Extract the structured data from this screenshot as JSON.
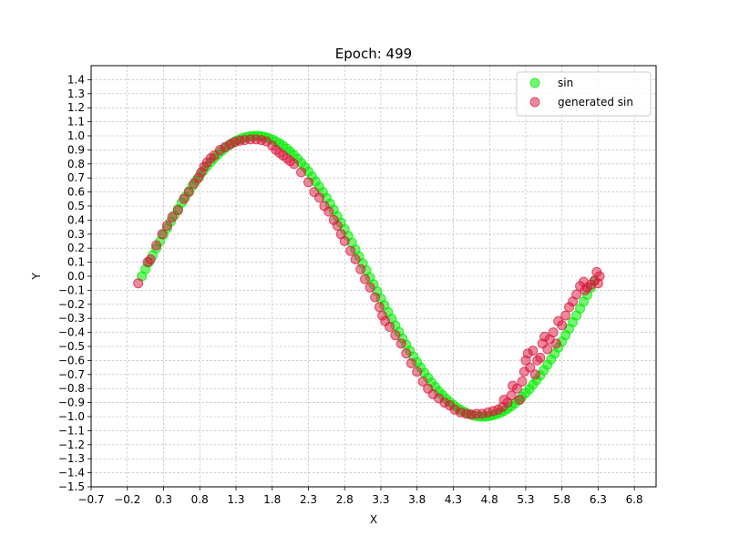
{
  "chart_data": {
    "type": "scatter",
    "title": "Epoch: 499",
    "xlabel": "X",
    "ylabel": "Y",
    "xlim": [
      -0.7,
      7.1
    ],
    "ylim": [
      -1.5,
      1.5
    ],
    "xticks": [
      -0.7,
      -0.2,
      0.3,
      0.8,
      1.3,
      1.8,
      2.3,
      2.8,
      3.3,
      3.8,
      4.3,
      4.8,
      5.3,
      5.8,
      6.3,
      6.8
    ],
    "xtick_labels": [
      "−0.7",
      "−0.2",
      "0.3",
      "0.8",
      "1.3",
      "1.8",
      "2.3",
      "2.8",
      "3.3",
      "3.8",
      "4.3",
      "4.8",
      "5.3",
      "5.8",
      "6.3",
      "6.8"
    ],
    "yticks": [
      -1.5,
      -1.4,
      -1.3,
      -1.2,
      -1.1,
      -1.0,
      -0.9,
      -0.8,
      -0.7,
      -0.6,
      -0.5,
      -0.4,
      -0.3,
      -0.2,
      -0.1,
      0.0,
      0.1,
      0.2,
      0.3,
      0.4,
      0.5,
      0.6,
      0.7,
      0.8,
      0.9,
      1.0,
      1.1,
      1.2,
      1.3,
      1.4
    ],
    "ytick_labels": [
      "−1.5",
      "−1.4",
      "−1.3",
      "−1.2",
      "−1.1",
      "−1.0",
      "−0.9",
      "−0.8",
      "−0.7",
      "−0.6",
      "−0.5",
      "−0.4",
      "−0.3",
      "−0.2",
      "−0.1",
      "0.0",
      "0.1",
      "0.2",
      "0.3",
      "0.4",
      "0.5",
      "0.6",
      "0.7",
      "0.8",
      "0.9",
      "1.0",
      "1.1",
      "1.2",
      "1.3",
      "1.4"
    ],
    "grid": true,
    "legend_position": "top-right",
    "series": [
      {
        "name": "sin",
        "color": "#00ee00",
        "opacity": 0.55,
        "points": [
          [
            0.0,
            0.0
          ],
          [
            0.05,
            0.05
          ],
          [
            0.1,
            0.1
          ],
          [
            0.15,
            0.149
          ],
          [
            0.2,
            0.199
          ],
          [
            0.25,
            0.247
          ],
          [
            0.3,
            0.296
          ],
          [
            0.35,
            0.343
          ],
          [
            0.4,
            0.389
          ],
          [
            0.45,
            0.435
          ],
          [
            0.5,
            0.479
          ],
          [
            0.55,
            0.523
          ],
          [
            0.6,
            0.565
          ],
          [
            0.65,
            0.605
          ],
          [
            0.7,
            0.644
          ],
          [
            0.75,
            0.682
          ],
          [
            0.8,
            0.717
          ],
          [
            0.85,
            0.751
          ],
          [
            0.9,
            0.783
          ],
          [
            0.95,
            0.813
          ],
          [
            1.0,
            0.841
          ],
          [
            1.05,
            0.867
          ],
          [
            1.1,
            0.891
          ],
          [
            1.15,
            0.913
          ],
          [
            1.2,
            0.932
          ],
          [
            1.25,
            0.949
          ],
          [
            1.3,
            0.964
          ],
          [
            1.35,
            0.976
          ],
          [
            1.4,
            0.985
          ],
          [
            1.45,
            0.993
          ],
          [
            1.5,
            0.997
          ],
          [
            1.55,
            1.0
          ],
          [
            1.6,
            1.0
          ],
          [
            1.65,
            0.997
          ],
          [
            1.7,
            0.992
          ],
          [
            1.75,
            0.984
          ],
          [
            1.8,
            0.974
          ],
          [
            1.85,
            0.961
          ],
          [
            1.9,
            0.946
          ],
          [
            1.95,
            0.929
          ],
          [
            2.0,
            0.909
          ],
          [
            2.05,
            0.887
          ],
          [
            2.1,
            0.863
          ],
          [
            2.15,
            0.837
          ],
          [
            2.2,
            0.808
          ],
          [
            2.25,
            0.778
          ],
          [
            2.3,
            0.746
          ],
          [
            2.35,
            0.711
          ],
          [
            2.4,
            0.675
          ],
          [
            2.45,
            0.638
          ],
          [
            2.5,
            0.598
          ],
          [
            2.55,
            0.558
          ],
          [
            2.6,
            0.516
          ],
          [
            2.65,
            0.472
          ],
          [
            2.7,
            0.427
          ],
          [
            2.75,
            0.382
          ],
          [
            2.8,
            0.335
          ],
          [
            2.85,
            0.287
          ],
          [
            2.9,
            0.239
          ],
          [
            2.95,
            0.19
          ],
          [
            3.0,
            0.141
          ],
          [
            3.05,
            0.091
          ],
          [
            3.1,
            0.042
          ],
          [
            3.15,
            -0.008
          ],
          [
            3.2,
            -0.058
          ],
          [
            3.25,
            -0.108
          ],
          [
            3.3,
            -0.158
          ],
          [
            3.35,
            -0.207
          ],
          [
            3.4,
            -0.256
          ],
          [
            3.45,
            -0.303
          ],
          [
            3.5,
            -0.351
          ],
          [
            3.55,
            -0.397
          ],
          [
            3.6,
            -0.443
          ],
          [
            3.65,
            -0.487
          ],
          [
            3.7,
            -0.53
          ],
          [
            3.75,
            -0.572
          ],
          [
            3.8,
            -0.612
          ],
          [
            3.85,
            -0.65
          ],
          [
            3.9,
            -0.688
          ],
          [
            3.95,
            -0.723
          ],
          [
            4.0,
            -0.757
          ],
          [
            4.05,
            -0.788
          ],
          [
            4.1,
            -0.818
          ],
          [
            4.15,
            -0.846
          ],
          [
            4.2,
            -0.872
          ],
          [
            4.25,
            -0.895
          ],
          [
            4.3,
            -0.916
          ],
          [
            4.35,
            -0.935
          ],
          [
            4.4,
            -0.952
          ],
          [
            4.45,
            -0.966
          ],
          [
            4.5,
            -0.978
          ],
          [
            4.55,
            -0.987
          ],
          [
            4.6,
            -0.994
          ],
          [
            4.65,
            -0.998
          ],
          [
            4.7,
            -1.0
          ],
          [
            4.75,
            -0.999
          ],
          [
            4.8,
            -0.996
          ],
          [
            4.85,
            -0.99
          ],
          [
            4.9,
            -0.982
          ],
          [
            4.95,
            -0.972
          ],
          [
            5.0,
            -0.959
          ],
          [
            5.05,
            -0.944
          ],
          [
            5.1,
            -0.926
          ],
          [
            5.15,
            -0.906
          ],
          [
            5.2,
            -0.883
          ],
          [
            5.25,
            -0.859
          ],
          [
            5.3,
            -0.832
          ],
          [
            5.35,
            -0.804
          ],
          [
            5.4,
            -0.773
          ],
          [
            5.45,
            -0.74
          ],
          [
            5.5,
            -0.706
          ],
          [
            5.55,
            -0.669
          ],
          [
            5.6,
            -0.631
          ],
          [
            5.65,
            -0.592
          ],
          [
            5.7,
            -0.551
          ],
          [
            5.75,
            -0.508
          ],
          [
            5.8,
            -0.465
          ],
          [
            5.85,
            -0.42
          ],
          [
            5.9,
            -0.374
          ],
          [
            5.95,
            -0.327
          ],
          [
            6.0,
            -0.279
          ],
          [
            6.05,
            -0.231
          ],
          [
            6.1,
            -0.182
          ],
          [
            6.15,
            -0.133
          ],
          [
            6.2,
            -0.083
          ],
          [
            6.25,
            -0.033
          ]
        ]
      },
      {
        "name": "generated sin",
        "color": "#dc143c",
        "opacity": 0.5,
        "points": [
          [
            -0.05,
            -0.05
          ],
          [
            0.08,
            0.1
          ],
          [
            0.12,
            0.12
          ],
          [
            0.2,
            0.22
          ],
          [
            0.28,
            0.3
          ],
          [
            0.35,
            0.36
          ],
          [
            0.42,
            0.42
          ],
          [
            0.5,
            0.47
          ],
          [
            0.58,
            0.55
          ],
          [
            0.65,
            0.6
          ],
          [
            0.72,
            0.66
          ],
          [
            0.78,
            0.7
          ],
          [
            0.82,
            0.74
          ],
          [
            0.86,
            0.78
          ],
          [
            0.9,
            0.81
          ],
          [
            0.95,
            0.84
          ],
          [
            1.0,
            0.86
          ],
          [
            1.08,
            0.9
          ],
          [
            1.15,
            0.92
          ],
          [
            1.22,
            0.94
          ],
          [
            1.28,
            0.955
          ],
          [
            1.35,
            0.965
          ],
          [
            1.42,
            0.97
          ],
          [
            1.5,
            0.975
          ],
          [
            1.58,
            0.975
          ],
          [
            1.65,
            0.97
          ],
          [
            1.72,
            0.96
          ],
          [
            1.8,
            0.93
          ],
          [
            1.85,
            0.9
          ],
          [
            1.9,
            0.88
          ],
          [
            1.95,
            0.86
          ],
          [
            2.0,
            0.84
          ],
          [
            2.05,
            0.82
          ],
          [
            2.1,
            0.8
          ],
          [
            2.2,
            0.74
          ],
          [
            2.3,
            0.67
          ],
          [
            2.38,
            0.6
          ],
          [
            2.45,
            0.56
          ],
          [
            2.52,
            0.5
          ],
          [
            2.58,
            0.46
          ],
          [
            2.65,
            0.4
          ],
          [
            2.7,
            0.36
          ],
          [
            2.75,
            0.3
          ],
          [
            2.8,
            0.25
          ],
          [
            2.88,
            0.18
          ],
          [
            2.95,
            0.12
          ],
          [
            3.02,
            0.05
          ],
          [
            3.08,
            -0.02
          ],
          [
            3.15,
            -0.08
          ],
          [
            3.22,
            -0.15
          ],
          [
            3.28,
            -0.22
          ],
          [
            3.32,
            -0.28
          ],
          [
            3.36,
            -0.32
          ],
          [
            3.42,
            -0.36
          ],
          [
            3.5,
            -0.42
          ],
          [
            3.58,
            -0.48
          ],
          [
            3.65,
            -0.55
          ],
          [
            3.72,
            -0.62
          ],
          [
            3.8,
            -0.68
          ],
          [
            3.88,
            -0.75
          ],
          [
            3.95,
            -0.8
          ],
          [
            4.02,
            -0.84
          ],
          [
            4.1,
            -0.87
          ],
          [
            4.18,
            -0.9
          ],
          [
            4.25,
            -0.92
          ],
          [
            4.32,
            -0.95
          ],
          [
            4.4,
            -0.97
          ],
          [
            4.48,
            -0.98
          ],
          [
            4.55,
            -0.985
          ],
          [
            4.62,
            -0.98
          ],
          [
            4.7,
            -0.98
          ],
          [
            4.78,
            -0.97
          ],
          [
            4.85,
            -0.96
          ],
          [
            4.92,
            -0.95
          ],
          [
            4.98,
            -0.93
          ],
          [
            5.0,
            -0.88
          ],
          [
            5.05,
            -0.9
          ],
          [
            5.1,
            -0.85
          ],
          [
            5.12,
            -0.78
          ],
          [
            5.18,
            -0.8
          ],
          [
            5.22,
            -0.88
          ],
          [
            5.25,
            -0.75
          ],
          [
            5.28,
            -0.68
          ],
          [
            5.3,
            -0.6
          ],
          [
            5.33,
            -0.55
          ],
          [
            5.36,
            -0.65
          ],
          [
            5.4,
            -0.53
          ],
          [
            5.43,
            -0.7
          ],
          [
            5.46,
            -0.6
          ],
          [
            5.5,
            -0.58
          ],
          [
            5.53,
            -0.48
          ],
          [
            5.56,
            -0.43
          ],
          [
            5.6,
            -0.52
          ],
          [
            5.63,
            -0.45
          ],
          [
            5.68,
            -0.4
          ],
          [
            5.72,
            -0.48
          ],
          [
            5.75,
            -0.32
          ],
          [
            5.8,
            -0.35
          ],
          [
            5.85,
            -0.28
          ],
          [
            5.9,
            -0.22
          ],
          [
            5.95,
            -0.18
          ],
          [
            6.0,
            -0.13
          ],
          [
            6.05,
            -0.07
          ],
          [
            6.1,
            -0.04
          ],
          [
            6.12,
            -0.1
          ],
          [
            6.15,
            -0.08
          ],
          [
            6.2,
            -0.06
          ],
          [
            6.25,
            -0.03
          ],
          [
            6.28,
            0.03
          ],
          [
            6.3,
            -0.05
          ],
          [
            6.32,
            0.0
          ]
        ]
      }
    ]
  }
}
